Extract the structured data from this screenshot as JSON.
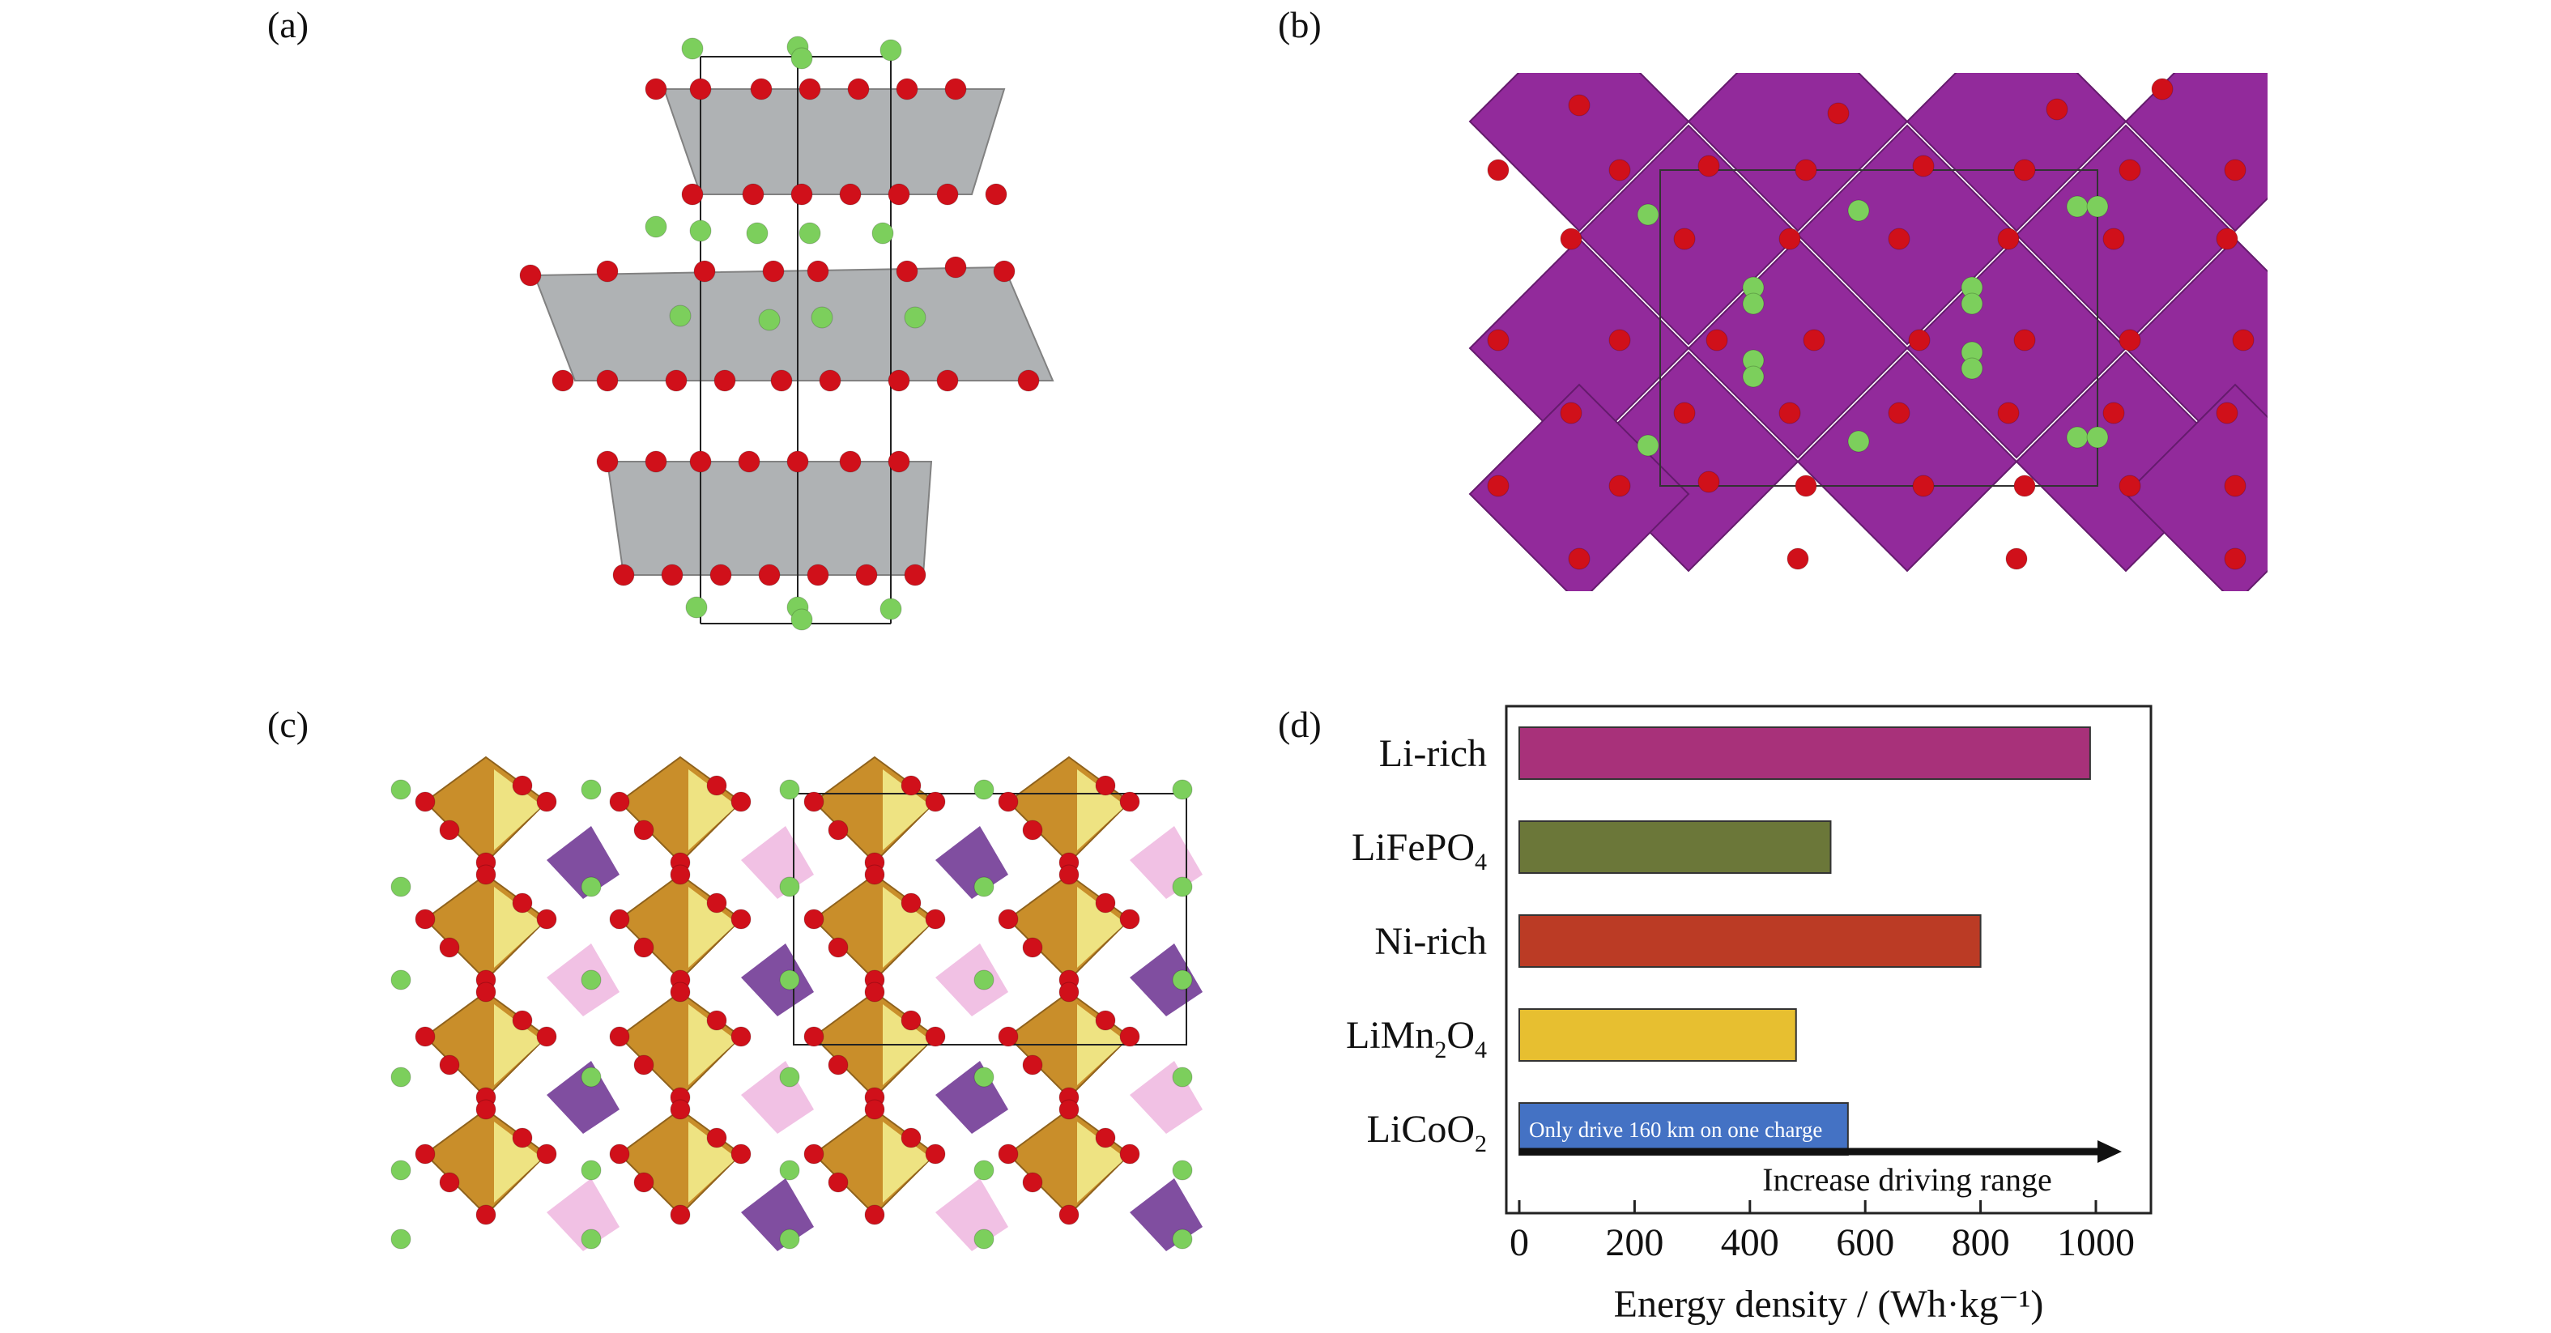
{
  "panel_labels": {
    "a": "(a)",
    "b": "(b)",
    "c": "(c)",
    "d": "(d)"
  },
  "colors": {
    "oxygen": "#d0101a",
    "lithium": "#7ccf5c",
    "layered_octahedra": "#a9acae",
    "spinel_octahedra": "#8d1f96",
    "olivine_octahedra": "#c7891f",
    "olivine_light": "#f2ec8c",
    "phosphate_tetrahedra": "#6a2f8f",
    "pink_tetrahedra": "#efb6df"
  },
  "chart_data": {
    "type": "bar",
    "orientation": "horizontal",
    "categories": [
      "Li-rich",
      "LiFePO4",
      "Ni-rich",
      "LiMn2O4",
      "LiCoO2"
    ],
    "category_display": [
      {
        "base": "Li-rich",
        "sub": "",
        "tail": ""
      },
      {
        "base": "LiFePO",
        "sub": "4",
        "tail": ""
      },
      {
        "base": "Ni-rich",
        "sub": "",
        "tail": ""
      },
      {
        "base": "LiMn",
        "sub": "2",
        "tail": "O",
        "sub2": "4"
      },
      {
        "base": "LiCoO",
        "sub": "2",
        "tail": ""
      }
    ],
    "values": [
      990,
      540,
      800,
      480,
      570
    ],
    "bar_colors": [
      "#a8317a",
      "#6b7739",
      "#bb3b25",
      "#e7bf30",
      "#4472c4"
    ],
    "xlabel": "Energy density / (Wh·kg⁻¹)",
    "xlim": [
      0,
      1100
    ],
    "xticks": [
      0,
      200,
      400,
      600,
      800,
      1000
    ],
    "annotations": {
      "licoo2_note": "Only drive 160 km on one charge",
      "arrow_label": "Increase driving range"
    },
    "grid": false,
    "legend": "none"
  }
}
